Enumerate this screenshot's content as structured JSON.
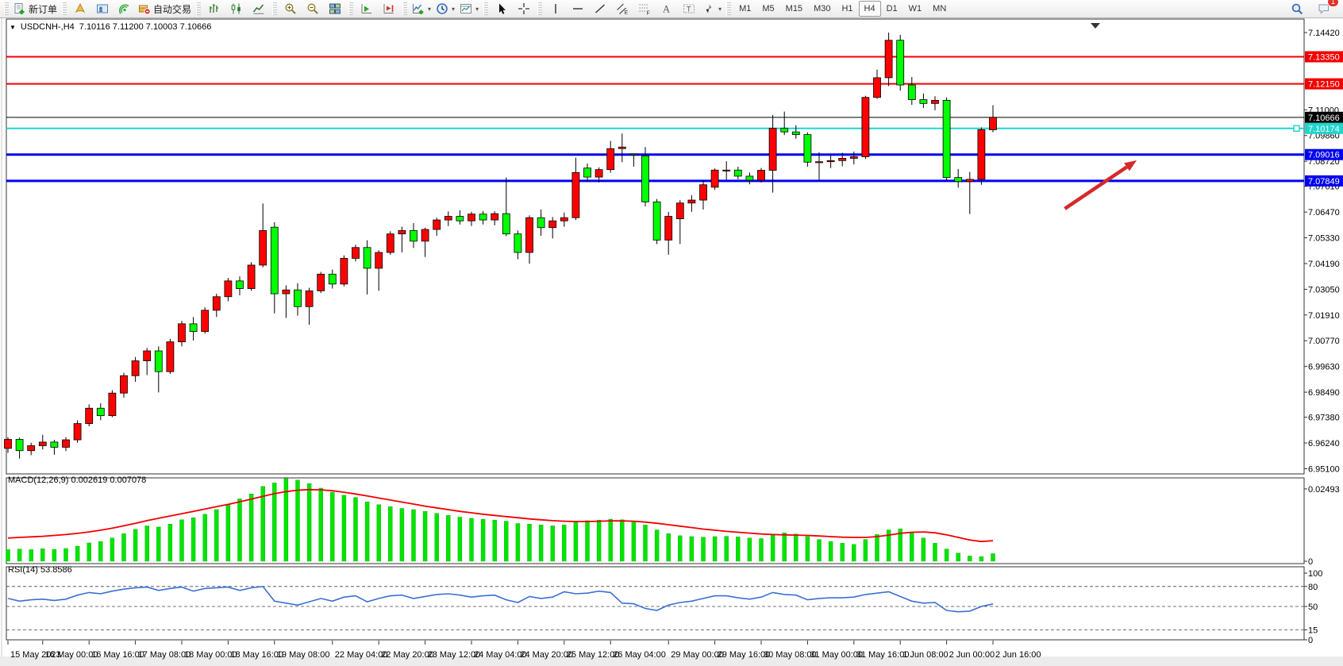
{
  "toolbar": {
    "groups": [
      {
        "items": [
          {
            "name": "new-order",
            "label": "新订单"
          }
        ]
      },
      {
        "items": [
          {
            "name": "symbols"
          },
          {
            "name": "market-watch"
          },
          {
            "name": "signals"
          },
          {
            "name": "autotrading",
            "label": "自动交易"
          }
        ]
      },
      {
        "items": [
          {
            "name": "bar-chart"
          },
          {
            "name": "candlesticks"
          },
          {
            "name": "line-chart"
          }
        ]
      },
      {
        "items": [
          {
            "name": "zoom-in"
          },
          {
            "name": "zoom-out"
          },
          {
            "name": "tile-windows"
          }
        ]
      },
      {
        "items": [
          {
            "name": "auto-scroll"
          },
          {
            "name": "chart-shift"
          }
        ]
      },
      {
        "items": [
          {
            "name": "indicators",
            "dropdown": true
          },
          {
            "name": "periods",
            "dropdown": true
          },
          {
            "name": "templates",
            "dropdown": true
          }
        ]
      },
      {
        "items": [
          {
            "name": "cursor"
          },
          {
            "name": "crosshair"
          }
        ]
      },
      {
        "items": [
          {
            "name": "vertical-line"
          },
          {
            "name": "horizontal-line"
          },
          {
            "name": "trendline"
          },
          {
            "name": "equidistant-channel"
          },
          {
            "name": "fibonacci"
          },
          {
            "name": "text"
          },
          {
            "name": "text-label"
          },
          {
            "name": "arrows",
            "dropdown": true
          }
        ]
      }
    ],
    "timeframes": [
      "M1",
      "M5",
      "M15",
      "M30",
      "H1",
      "H4",
      "D1",
      "W1",
      "MN"
    ],
    "active_timeframe": "H4",
    "right": [
      {
        "name": "search"
      },
      {
        "name": "chat",
        "badge": "1"
      }
    ]
  },
  "chart": {
    "symbol_period": "USDCNH-,H4",
    "ohlc": "7.10116 7.11200 7.10003 7.10666",
    "macd_name": "MACD(12,26,9)",
    "macd_values": "0.002619 0.007078",
    "rsi_name": "RSI(14)",
    "rsi_value": "53.8586"
  },
  "chart_data": {
    "type": "candlestick",
    "title": "USDCNH-,H4",
    "period": "H4",
    "ylim": [
      6.9487,
      7.1502
    ],
    "price_ticks": [
      "7.14420",
      "7.11000",
      "7.09860",
      "7.08720",
      "7.07610",
      "7.06470",
      "7.05330",
      "7.04190",
      "7.03050",
      "7.01910",
      "7.00770",
      "6.99630",
      "6.98490",
      "6.97380",
      "6.96240",
      "6.95100"
    ],
    "hlines": [
      {
        "price": 7.1335,
        "color": "#f20000",
        "width": 2,
        "badge": "7.13350",
        "badge_bg": "#f20000"
      },
      {
        "price": 7.1215,
        "color": "#f20000",
        "width": 2,
        "badge": "7.12150",
        "badge_bg": "#f20000"
      },
      {
        "price": 7.10666,
        "color": "#000000",
        "width": 1,
        "badge": "7.10666",
        "badge_bg": "#000000"
      },
      {
        "price": 7.10174,
        "color": "#1fd6cd",
        "width": 2,
        "badge": "7.10174",
        "badge_bg": "#1fd6cd",
        "handle": true
      },
      {
        "price": 7.09016,
        "color": "#0000f0",
        "width": 3,
        "badge": "7.09016",
        "badge_bg": "#0000f0"
      },
      {
        "price": 7.07849,
        "color": "#0000f0",
        "width": 3,
        "badge": "7.07849",
        "badge_bg": "#0000f0"
      }
    ],
    "candles": [
      [
        6.96,
        6.965,
        6.958,
        6.964
      ],
      [
        6.964,
        6.9648,
        6.9555,
        6.959
      ],
      [
        6.959,
        6.9625,
        6.957,
        6.9612
      ],
      [
        6.9612,
        6.966,
        6.9595,
        6.9628
      ],
      [
        6.9628,
        6.9638,
        6.9572,
        6.9605
      ],
      [
        6.9605,
        6.965,
        6.9588,
        6.9638
      ],
      [
        6.9638,
        6.9725,
        6.9625,
        6.971
      ],
      [
        6.971,
        6.9795,
        6.9698,
        6.9778
      ],
      [
        6.9778,
        6.98,
        6.9725,
        6.9745
      ],
      [
        6.9745,
        6.9858,
        6.9738,
        6.9845
      ],
      [
        6.9845,
        6.9935,
        6.9825,
        6.9922
      ],
      [
        6.9922,
        7.0005,
        6.9895,
        6.9988
      ],
      [
        6.9988,
        7.0045,
        6.9925,
        7.0032
      ],
      [
        7.0032,
        7.0052,
        6.9848,
        6.994
      ],
      [
        6.994,
        7.0085,
        6.993,
        7.0072
      ],
      [
        7.0072,
        7.0165,
        7.0052,
        7.0152
      ],
      [
        7.0152,
        7.0182,
        7.0078,
        7.0118
      ],
      [
        7.0118,
        7.0225,
        7.0108,
        7.0212
      ],
      [
        7.0212,
        7.0285,
        7.0182,
        7.0272
      ],
      [
        7.0272,
        7.0355,
        7.0252,
        7.0342
      ],
      [
        7.0342,
        7.0362,
        7.0278,
        7.0308
      ],
      [
        7.0308,
        7.0425,
        7.0298,
        7.0412
      ],
      [
        7.0412,
        7.0685,
        7.0402,
        7.0565
      ],
      [
        7.058,
        7.0602,
        7.0198,
        7.0285
      ],
      [
        7.0285,
        7.0322,
        7.0178,
        7.0302
      ],
      [
        7.0302,
        7.0332,
        7.0188,
        7.0228
      ],
      [
        7.0228,
        7.0312,
        7.0148,
        7.0298
      ],
      [
        7.0298,
        7.0382,
        7.0288,
        7.0372
      ],
      [
        7.0372,
        7.0392,
        7.0308,
        7.0328
      ],
      [
        7.0328,
        7.0455,
        7.0318,
        7.0442
      ],
      [
        7.0442,
        7.0502,
        7.0428,
        7.049
      ],
      [
        7.049,
        7.0522,
        7.0282,
        7.0398
      ],
      [
        7.0398,
        7.0478,
        7.0298,
        7.0468
      ],
      [
        7.0468,
        7.0562,
        7.0458,
        7.055
      ],
      [
        7.055,
        7.0582,
        7.0468,
        7.0565
      ],
      [
        7.0565,
        7.0598,
        7.0488,
        7.0518
      ],
      [
        7.0518,
        7.0578,
        7.0448,
        7.057
      ],
      [
        7.057,
        7.0622,
        7.0542,
        7.0612
      ],
      [
        7.0612,
        7.065,
        7.0585,
        7.0628
      ],
      [
        7.0628,
        7.0655,
        7.0592,
        7.0608
      ],
      [
        7.0608,
        7.0648,
        7.0585,
        7.0638
      ],
      [
        7.0638,
        7.0652,
        7.0592,
        7.0612
      ],
      [
        7.0612,
        7.065,
        7.0588,
        7.064
      ],
      [
        7.064,
        7.08,
        7.054,
        7.055
      ],
      [
        7.055,
        7.0565,
        7.0438,
        7.0468
      ],
      [
        7.0468,
        7.0632,
        7.0418,
        7.0622
      ],
      [
        7.0622,
        7.0658,
        7.0542,
        7.0578
      ],
      [
        7.0578,
        7.0625,
        7.053,
        7.0608
      ],
      [
        7.0608,
        7.0645,
        7.0582,
        7.0622
      ],
      [
        7.0622,
        7.0888,
        7.0612,
        7.0822
      ],
      [
        7.0842,
        7.0862,
        7.0782,
        7.0802
      ],
      [
        7.0802,
        7.0845,
        7.0778,
        7.0835
      ],
      [
        7.0835,
        7.0962,
        7.0822,
        7.0928
      ],
      [
        7.0928,
        7.0995,
        7.0868,
        7.0935
      ],
      [
        7.0905,
        7.0905,
        7.0848,
        7.0903
      ],
      [
        7.0896,
        7.0935,
        7.0672,
        7.0692
      ],
      [
        7.0692,
        7.0705,
        7.0505,
        7.0523
      ],
      [
        7.0523,
        7.0648,
        7.0458,
        7.0628
      ],
      [
        7.0617,
        7.07,
        7.0505,
        7.0687
      ],
      [
        7.0687,
        7.0722,
        7.0648,
        7.07
      ],
      [
        7.07,
        7.0788,
        7.0658,
        7.0768
      ],
      [
        7.0757,
        7.084,
        7.0745,
        7.0833
      ],
      [
        7.0833,
        7.0872,
        7.0788,
        7.0833
      ],
      [
        7.0833,
        7.0848,
        7.0792,
        7.0806
      ],
      [
        7.0806,
        7.0822,
        7.077,
        7.0788
      ],
      [
        7.0788,
        7.0842,
        7.0778,
        7.0832
      ],
      [
        7.0832,
        7.1077,
        7.0733,
        7.1018
      ],
      [
        7.1018,
        7.1092,
        7.0988,
        7.1002
      ],
      [
        7.1002,
        7.1032,
        7.0972,
        7.099
      ],
      [
        7.099,
        7.1,
        7.0848,
        7.0868
      ],
      [
        7.0868,
        7.0912,
        7.0785,
        7.087
      ],
      [
        7.087,
        7.09,
        7.0842,
        7.0875
      ],
      [
        7.0875,
        7.091,
        7.085,
        7.0885
      ],
      [
        7.0885,
        7.0915,
        7.0858,
        7.0892
      ],
      [
        7.0892,
        7.1162,
        7.0882,
        7.1155
      ],
      [
        7.1155,
        7.1278,
        7.1148,
        7.1242
      ],
      [
        7.1242,
        7.1442,
        7.1205,
        7.1408
      ],
      [
        7.1408,
        7.1432,
        7.1185,
        7.121
      ],
      [
        7.121,
        7.1245,
        7.1122,
        7.1145
      ],
      [
        7.1145,
        7.1172,
        7.1108,
        7.1128
      ],
      [
        7.1128,
        7.116,
        7.1098,
        7.1142
      ],
      [
        7.1142,
        7.1155,
        7.0788,
        7.08
      ],
      [
        7.08,
        7.0838,
        7.0755,
        7.0782
      ],
      [
        7.0782,
        7.0825,
        7.0638,
        7.0792
      ],
      [
        7.0792,
        7.1022,
        7.0768,
        7.1012
      ],
      [
        7.10116,
        7.112,
        7.10003,
        7.10666
      ]
    ],
    "bull_color": "#ff0000",
    "bear_color": "#00ff00",
    "wick_color": "#000000",
    "time_labels": [
      {
        "label": "15 May 2023",
        "bar": 0
      },
      {
        "label": "16 May 00:00",
        "bar": 3
      },
      {
        "label": "16 May 16:00",
        "bar": 7
      },
      {
        "label": "17 May 08:00",
        "bar": 11
      },
      {
        "label": "18 May 00:00",
        "bar": 15
      },
      {
        "label": "18 May 16:00",
        "bar": 19
      },
      {
        "label": "19 May 08:00",
        "bar": 23
      },
      {
        "label": "22 May 04:00",
        "bar": 28
      },
      {
        "label": "22 May 20:00",
        "bar": 32
      },
      {
        "label": "23 May 12:00",
        "bar": 36
      },
      {
        "label": "24 May 04:00",
        "bar": 40
      },
      {
        "label": "24 May 20:00",
        "bar": 44
      },
      {
        "label": "25 May 12:00",
        "bar": 48
      },
      {
        "label": "26 May 04:00",
        "bar": 52
      },
      {
        "label": "29 May 00:00",
        "bar": 57
      },
      {
        "label": "29 May 16:00",
        "bar": 61
      },
      {
        "label": "30 May 08:00",
        "bar": 65
      },
      {
        "label": "31 May 00:00",
        "bar": 69
      },
      {
        "label": "31 May 16:00",
        "bar": 73
      },
      {
        "label": "1 Jun 08:00",
        "bar": 77
      },
      {
        "label": "2 Jun 00:00",
        "bar": 81
      },
      {
        "label": "2 Jun 16:00",
        "bar": 85
      }
    ],
    "macd": {
      "label": "MACD(12,26,9)",
      "current_macd": "0.002619",
      "current_signal": "0.007078",
      "ticks": [
        "0.02493",
        "0"
      ],
      "ymax": 0.0282,
      "histogram_color": "#00e500",
      "signal_color": "#f20000",
      "histogram": [
        0.004,
        0.0042,
        0.004,
        0.0043,
        0.0041,
        0.0044,
        0.0052,
        0.0063,
        0.0068,
        0.008,
        0.0095,
        0.011,
        0.0122,
        0.0118,
        0.0128,
        0.0143,
        0.015,
        0.0162,
        0.0178,
        0.0195,
        0.0215,
        0.0232,
        0.0258,
        0.027,
        0.0285,
        0.028,
        0.0268,
        0.0252,
        0.0238,
        0.0228,
        0.022,
        0.0205,
        0.0195,
        0.0188,
        0.0182,
        0.0178,
        0.0172,
        0.0165,
        0.0158,
        0.0152,
        0.0148,
        0.0145,
        0.0142,
        0.0138,
        0.013,
        0.0128,
        0.0125,
        0.0122,
        0.0125,
        0.0138,
        0.014,
        0.0142,
        0.0145,
        0.0143,
        0.0138,
        0.0125,
        0.0108,
        0.0095,
        0.0088,
        0.0085,
        0.0083,
        0.0085,
        0.0086,
        0.0084,
        0.008,
        0.0078,
        0.009,
        0.0098,
        0.0094,
        0.0085,
        0.0075,
        0.0068,
        0.0062,
        0.0058,
        0.0075,
        0.0092,
        0.0108,
        0.0112,
        0.0098,
        0.008,
        0.0062,
        0.0042,
        0.0028,
        0.0018,
        0.0016,
        0.0026
      ],
      "signal": [
        0.008,
        0.0082,
        0.0084,
        0.0086,
        0.0089,
        0.0092,
        0.0096,
        0.0101,
        0.0107,
        0.0114,
        0.0122,
        0.0131,
        0.014,
        0.0148,
        0.0156,
        0.0164,
        0.0172,
        0.018,
        0.0188,
        0.0196,
        0.0205,
        0.0214,
        0.0224,
        0.0233,
        0.024,
        0.0245,
        0.0247,
        0.0246,
        0.0243,
        0.0238,
        0.0232,
        0.0225,
        0.0218,
        0.0211,
        0.0204,
        0.0197,
        0.019,
        0.0184,
        0.0178,
        0.0172,
        0.0167,
        0.0162,
        0.0158,
        0.0154,
        0.015,
        0.0146,
        0.0143,
        0.014,
        0.0138,
        0.0137,
        0.0137,
        0.0138,
        0.0139,
        0.0139,
        0.0138,
        0.0135,
        0.0131,
        0.0126,
        0.0121,
        0.0116,
        0.0111,
        0.0107,
        0.0103,
        0.01,
        0.0097,
        0.0094,
        0.0092,
        0.0091,
        0.009,
        0.0089,
        0.0087,
        0.0085,
        0.0083,
        0.0082,
        0.0082,
        0.0085,
        0.009,
        0.0096,
        0.01,
        0.0101,
        0.0098,
        0.0091,
        0.0082,
        0.0073,
        0.0068,
        0.0071
      ]
    },
    "rsi": {
      "label": "RSI(14)",
      "current": "53.8586",
      "line_color": "#3c6fd4",
      "ticks": [
        {
          "v": 100,
          "dash": false
        },
        {
          "v": 80,
          "dash": true
        },
        {
          "v": 50,
          "dash": true
        },
        {
          "v": 15,
          "dash": true
        },
        {
          "v": 0,
          "dash": false
        }
      ],
      "values": [
        62,
        58,
        60,
        61,
        59,
        61,
        67,
        71,
        69,
        73,
        76,
        78,
        79,
        74,
        77,
        79,
        73,
        77,
        78,
        79,
        74,
        78,
        80,
        58,
        55,
        52,
        57,
        62,
        58,
        64,
        66,
        57,
        62,
        66,
        67,
        62,
        65,
        68,
        69,
        67,
        64,
        66,
        67,
        60,
        56,
        65,
        62,
        64,
        72,
        69,
        70,
        73,
        71,
        55,
        54,
        47,
        44,
        52,
        56,
        58,
        62,
        66,
        66,
        63,
        61,
        64,
        71,
        68,
        67,
        60,
        62,
        63,
        63,
        64,
        68,
        70,
        72,
        65,
        58,
        55,
        56,
        44,
        42,
        43,
        50,
        53.86
      ]
    },
    "annotation_arrow": {
      "from_bar": 91.2,
      "from_price": 7.0662,
      "to_bar": 97.4,
      "to_price": 7.0876,
      "color": "#d42a2a"
    }
  }
}
